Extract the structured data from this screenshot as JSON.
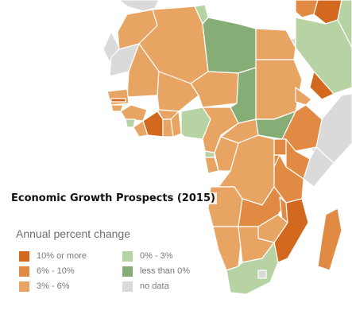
{
  "title": "Economic Growth Prospects (2015)",
  "legend": {
    "title": "Annual percent change",
    "items": [
      {
        "label": "10% or more",
        "color": "#d2691e"
      },
      {
        "label": "6% - 10%",
        "color": "#e08a44"
      },
      {
        "label": "3% - 6%",
        "color": "#e8a463"
      },
      {
        "label": "0% - 3%",
        "color": "#b7d3a3"
      },
      {
        "label": "less than 0%",
        "color": "#86ad76"
      },
      {
        "label": "no data",
        "color": "#dadada"
      }
    ]
  },
  "colors": {
    "land_outside_africa": "#dadada",
    "ocean": "#ffffff",
    "border": "#ffffff"
  }
}
